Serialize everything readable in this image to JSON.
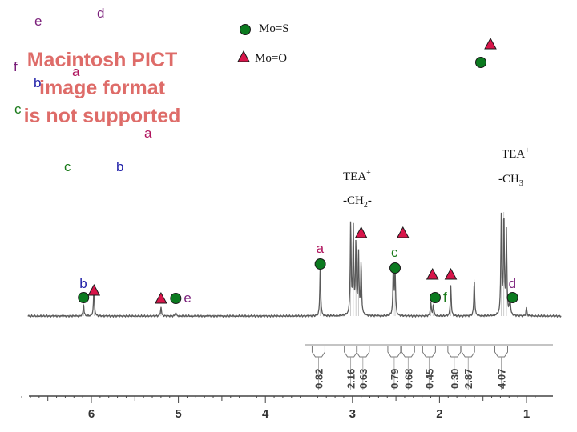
{
  "colors": {
    "purple": "#7a1f7a",
    "blue": "#1f1fa8",
    "green": "#1a7a1a",
    "magenta": "#b0155e",
    "red_placeholder": "#d9534f",
    "circle_fill": "#0b7a1f",
    "triangle_fill": "#d8154a",
    "spectrum": "#5a5a5a"
  },
  "placeholder": {
    "line1": "Macintosh PICT",
    "line2": "image format",
    "line3": "is not supported"
  },
  "structure_labels": {
    "e": "e",
    "d": "d",
    "f": "f",
    "a_top": "a",
    "b_top": "b",
    "c_left": "c",
    "a_mid": "a",
    "c_mid": "c",
    "b_mid": "b"
  },
  "legend": {
    "circle_label": "Mo=S",
    "triangle_label": "Mo=O",
    "circle_icon": "green-circle-icon",
    "triangle_icon": "red-triangle-icon"
  },
  "annotations": {
    "tea_ch2_top": "TEA",
    "tea_ch2_plus": "+",
    "tea_ch2_bottom": "-CH",
    "tea_ch2_sub": "2",
    "tea_ch2_dash": "-",
    "tea_ch3_top": "TEA",
    "tea_ch3_plus": "+",
    "tea_ch3_bottom": "-CH",
    "tea_ch3_sub": "3"
  },
  "chart_data": {
    "type": "line",
    "title": "",
    "xlabel": "",
    "ylabel": "",
    "x_axis": {
      "min": 0.8,
      "max": 7.0,
      "reversed": true,
      "ticks": [
        6,
        5,
        4,
        3,
        2,
        1
      ]
    },
    "peaks": [
      {
        "ppm": 6.09,
        "height": 0.12
      },
      {
        "ppm": 5.97,
        "height": 0.3
      },
      {
        "ppm": 5.2,
        "height": 0.09
      },
      {
        "ppm": 5.03,
        "height": 0.04
      },
      {
        "ppm": 3.37,
        "height": 0.48
      },
      {
        "ppm": 3.02,
        "height": 0.9
      },
      {
        "ppm": 2.99,
        "height": 0.85
      },
      {
        "ppm": 2.96,
        "height": 0.7
      },
      {
        "ppm": 2.93,
        "height": 0.6
      },
      {
        "ppm": 2.9,
        "height": 0.5
      },
      {
        "ppm": 2.53,
        "height": 0.48
      },
      {
        "ppm": 2.51,
        "height": 0.45
      },
      {
        "ppm": 2.1,
        "height": 0.14
      },
      {
        "ppm": 2.07,
        "height": 0.12
      },
      {
        "ppm": 1.87,
        "height": 0.3
      },
      {
        "ppm": 1.6,
        "height": 0.35
      },
      {
        "ppm": 1.29,
        "height": 0.95
      },
      {
        "ppm": 1.26,
        "height": 1.0
      },
      {
        "ppm": 1.23,
        "height": 0.8
      },
      {
        "ppm": 1.19,
        "height": 0.2
      },
      {
        "ppm": 1.0,
        "height": 0.08
      }
    ],
    "peak_labels": [
      {
        "text": "b",
        "ppm": 6.09,
        "marker": "circle",
        "color": "blue"
      },
      {
        "text": "",
        "ppm": 5.97,
        "marker": "triangle",
        "color": ""
      },
      {
        "text": "",
        "ppm": 5.2,
        "marker": "triangle",
        "color": ""
      },
      {
        "text": "e",
        "ppm": 5.03,
        "marker": "circle",
        "color": "purple"
      },
      {
        "text": "a",
        "ppm": 3.37,
        "marker": "circle",
        "color": "magenta"
      },
      {
        "text": "",
        "ppm": 2.9,
        "marker": "triangle",
        "color": ""
      },
      {
        "text": "c",
        "ppm": 2.51,
        "marker": "circle",
        "color": "green"
      },
      {
        "text": "",
        "ppm": 2.42,
        "marker": "triangle",
        "color": ""
      },
      {
        "text": "",
        "ppm": 2.08,
        "marker": "triangle",
        "color": ""
      },
      {
        "text": "f",
        "ppm": 2.05,
        "marker": "circle",
        "color": "green"
      },
      {
        "text": "",
        "ppm": 1.87,
        "marker": "triangle",
        "color": ""
      },
      {
        "text": "d",
        "ppm": 1.16,
        "marker": "circle",
        "color": "purple"
      },
      {
        "text": "",
        "ppm": 1.4,
        "marker": "triangle",
        "color": "",
        "position": "top-right"
      },
      {
        "text": "",
        "ppm": 1.42,
        "marker": "circle",
        "color": "",
        "position": "top-right"
      }
    ],
    "integrals": [
      {
        "value": "0.82",
        "ppm": 3.39
      },
      {
        "value": "2.16",
        "ppm": 3.02
      },
      {
        "value": "0.63",
        "ppm": 2.88
      },
      {
        "value": "0.79",
        "ppm": 2.52
      },
      {
        "value": "0.68",
        "ppm": 2.36
      },
      {
        "value": "0.45",
        "ppm": 2.12
      },
      {
        "value": "0.30",
        "ppm": 1.83
      },
      {
        "value": "2.87",
        "ppm": 1.67
      },
      {
        "value": "4.07",
        "ppm": 1.29
      }
    ]
  }
}
